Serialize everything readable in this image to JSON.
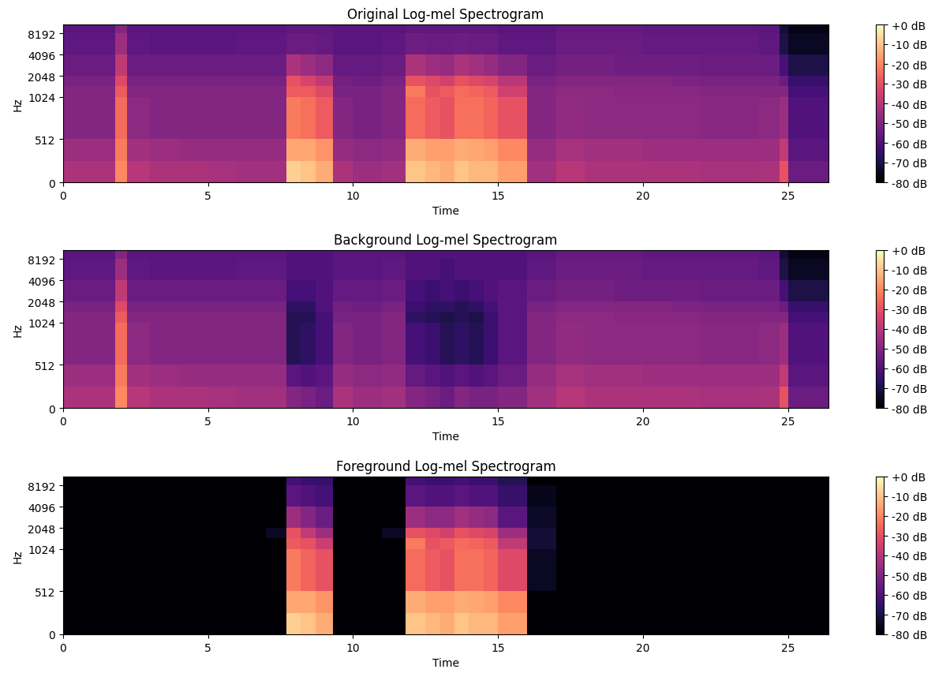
{
  "chart_data": [
    {
      "type": "heatmap",
      "title": "Original Log-mel Spectrogram",
      "x_label": "Time",
      "y_label": "Hz",
      "xlim": [
        0,
        26.4
      ],
      "ylim": [
        0,
        11025
      ],
      "xticks": [
        0,
        5,
        10,
        15,
        20,
        25
      ],
      "yticks": [
        0,
        512,
        1024,
        2048,
        4096,
        8192
      ],
      "log": "y",
      "x_edges": [
        0,
        1,
        1.8,
        2.2,
        3,
        4,
        5,
        6,
        7,
        7.7,
        8.2,
        8.7,
        9.3,
        10,
        11,
        11.8,
        12.5,
        13,
        13.5,
        14,
        14.5,
        15,
        16,
        17,
        18,
        19,
        20,
        21,
        22,
        23,
        24,
        24.7,
        25,
        26.4
      ],
      "y_edges": [
        0,
        256,
        512,
        1024,
        1448,
        2048,
        4096,
        8192,
        11025
      ],
      "cells": [
        [
          -42,
          -42,
          -20,
          -40,
          -42,
          -42,
          -43,
          -44,
          -44,
          -8,
          -10,
          -14,
          -42,
          -45,
          -44,
          -10,
          -12,
          -14,
          -10,
          -12,
          -12,
          -16,
          -44,
          -40,
          -42,
          -42,
          -42,
          -42,
          -43,
          -43,
          -42,
          -30,
          -55
        ],
        [
          -45,
          -45,
          -22,
          -44,
          -45,
          -46,
          -46,
          -46,
          -46,
          -15,
          -15,
          -18,
          -46,
          -48,
          -47,
          -14,
          -16,
          -16,
          -14,
          -15,
          -16,
          -20,
          -46,
          -43,
          -44,
          -44,
          -45,
          -45,
          -45,
          -45,
          -45,
          -38,
          -58
        ],
        [
          -50,
          -50,
          -25,
          -48,
          -50,
          -50,
          -50,
          -50,
          -50,
          -22,
          -24,
          -28,
          -50,
          -52,
          -50,
          -25,
          -28,
          -30,
          -24,
          -24,
          -26,
          -30,
          -50,
          -47,
          -48,
          -48,
          -48,
          -48,
          -49,
          -49,
          -48,
          -45,
          -60
        ],
        [
          -50,
          -50,
          -28,
          -50,
          -50,
          -50,
          -50,
          -50,
          -50,
          -28,
          -28,
          -32,
          -52,
          -52,
          -50,
          -22,
          -30,
          -28,
          -25,
          -26,
          -28,
          -35,
          -50,
          -48,
          -48,
          -49,
          -49,
          -49,
          -50,
          -50,
          -50,
          -50,
          -62
        ],
        [
          -52,
          -52,
          -32,
          -52,
          -52,
          -52,
          -52,
          -52,
          -52,
          -30,
          -34,
          -38,
          -53,
          -54,
          -52,
          -30,
          -32,
          -35,
          -30,
          -32,
          -34,
          -40,
          -52,
          -50,
          -50,
          -50,
          -50,
          -51,
          -52,
          -52,
          -52,
          -55,
          -65
        ],
        [
          -55,
          -55,
          -38,
          -55,
          -55,
          -55,
          -55,
          -55,
          -55,
          -42,
          -45,
          -48,
          -56,
          -56,
          -55,
          -42,
          -45,
          -46,
          -42,
          -44,
          -46,
          -50,
          -55,
          -53,
          -53,
          -54,
          -54,
          -54,
          -55,
          -55,
          -55,
          -62,
          -70
        ],
        [
          -57,
          -57,
          -45,
          -57,
          -58,
          -58,
          -58,
          -57,
          -57,
          -55,
          -55,
          -56,
          -58,
          -58,
          -57,
          -54,
          -55,
          -55,
          -54,
          -55,
          -55,
          -57,
          -57,
          -55,
          -55,
          -55,
          -56,
          -56,
          -56,
          -56,
          -57,
          -70,
          -75
        ],
        [
          -58,
          -58,
          -50,
          -58,
          -58,
          -58,
          -58,
          -58,
          -58,
          -57,
          -57,
          -57,
          -58,
          -58,
          -58,
          -57,
          -57,
          -57,
          -57,
          -57,
          -57,
          -58,
          -58,
          -56,
          -56,
          -56,
          -57,
          -57,
          -57,
          -57,
          -58,
          -72,
          -77
        ]
      ],
      "colorbar_range": [
        -80,
        0
      ],
      "colorbar_ticks": [
        {
          "value": 0,
          "label": "+0 dB"
        },
        {
          "value": -10,
          "label": "-10 dB"
        },
        {
          "value": -20,
          "label": "-20 dB"
        },
        {
          "value": -30,
          "label": "-30 dB"
        },
        {
          "value": -40,
          "label": "-40 dB"
        },
        {
          "value": -50,
          "label": "-50 dB"
        },
        {
          "value": -60,
          "label": "-60 dB"
        },
        {
          "value": -70,
          "label": "-70 dB"
        },
        {
          "value": -80,
          "label": "-80 dB"
        }
      ]
    },
    {
      "type": "heatmap",
      "title": "Background Log-mel Spectrogram",
      "x_label": "Time",
      "y_label": "Hz",
      "xlim": [
        0,
        26.4
      ],
      "ylim": [
        0,
        11025
      ],
      "xticks": [
        0,
        5,
        10,
        15,
        20,
        25
      ],
      "yticks": [
        0,
        512,
        1024,
        2048,
        4096,
        8192
      ],
      "log": "y",
      "x_edges": [
        0,
        1,
        1.8,
        2.2,
        3,
        4,
        5,
        6,
        7,
        7.7,
        8.2,
        8.7,
        9.3,
        10,
        11,
        11.8,
        12.5,
        13,
        13.5,
        14,
        14.5,
        15,
        16,
        17,
        18,
        19,
        20,
        21,
        22,
        23,
        24,
        24.7,
        25,
        26.4
      ],
      "y_edges": [
        0,
        256,
        512,
        1024,
        1448,
        2048,
        4096,
        8192,
        11025
      ],
      "cells": [
        [
          -42,
          -42,
          -20,
          -40,
          -42,
          -42,
          -43,
          -44,
          -44,
          -50,
          -52,
          -55,
          -42,
          -45,
          -44,
          -50,
          -52,
          -55,
          -50,
          -52,
          -52,
          -50,
          -44,
          -40,
          -42,
          -42,
          -42,
          -42,
          -43,
          -43,
          -42,
          -30,
          -55
        ],
        [
          -45,
          -45,
          -22,
          -44,
          -45,
          -46,
          -46,
          -46,
          -46,
          -58,
          -60,
          -58,
          -46,
          -48,
          -47,
          -56,
          -58,
          -60,
          -58,
          -60,
          -58,
          -55,
          -46,
          -43,
          -44,
          -44,
          -45,
          -45,
          -45,
          -45,
          -45,
          -38,
          -58
        ],
        [
          -50,
          -50,
          -25,
          -48,
          -50,
          -50,
          -50,
          -50,
          -50,
          -68,
          -66,
          -62,
          -50,
          -52,
          -50,
          -62,
          -64,
          -68,
          -66,
          -68,
          -64,
          -58,
          -50,
          -47,
          -48,
          -48,
          -48,
          -48,
          -49,
          -49,
          -48,
          -45,
          -60
        ],
        [
          -50,
          -50,
          -28,
          -50,
          -50,
          -50,
          -50,
          -50,
          -50,
          -68,
          -68,
          -62,
          -52,
          -52,
          -50,
          -66,
          -68,
          -70,
          -68,
          -70,
          -64,
          -58,
          -50,
          -48,
          -48,
          -49,
          -49,
          -49,
          -50,
          -50,
          -50,
          -50,
          -62
        ],
        [
          -52,
          -52,
          -32,
          -52,
          -52,
          -52,
          -52,
          -52,
          -52,
          -66,
          -66,
          -60,
          -53,
          -54,
          -52,
          -64,
          -66,
          -66,
          -68,
          -66,
          -62,
          -58,
          -52,
          -50,
          -50,
          -50,
          -50,
          -51,
          -52,
          -52,
          -52,
          -55,
          -65
        ],
        [
          -55,
          -55,
          -38,
          -55,
          -55,
          -55,
          -55,
          -55,
          -55,
          -62,
          -62,
          -60,
          -56,
          -56,
          -55,
          -62,
          -64,
          -62,
          -64,
          -62,
          -60,
          -58,
          -55,
          -53,
          -53,
          -54,
          -54,
          -54,
          -55,
          -55,
          -55,
          -62,
          -70
        ],
        [
          -57,
          -57,
          -45,
          -57,
          -58,
          -58,
          -58,
          -57,
          -57,
          -60,
          -60,
          -60,
          -58,
          -58,
          -57,
          -60,
          -60,
          -62,
          -60,
          -60,
          -60,
          -60,
          -57,
          -55,
          -55,
          -55,
          -56,
          -56,
          -56,
          -56,
          -57,
          -70,
          -75
        ],
        [
          -58,
          -58,
          -50,
          -58,
          -58,
          -58,
          -58,
          -58,
          -58,
          -60,
          -60,
          -60,
          -58,
          -58,
          -58,
          -60,
          -60,
          -60,
          -60,
          -60,
          -60,
          -60,
          -58,
          -56,
          -56,
          -56,
          -57,
          -57,
          -57,
          -57,
          -58,
          -72,
          -77
        ]
      ],
      "colorbar_range": [
        -80,
        0
      ],
      "colorbar_ticks": [
        {
          "value": 0,
          "label": "+0 dB"
        },
        {
          "value": -10,
          "label": "-10 dB"
        },
        {
          "value": -20,
          "label": "-20 dB"
        },
        {
          "value": -30,
          "label": "-30 dB"
        },
        {
          "value": -40,
          "label": "-40 dB"
        },
        {
          "value": -50,
          "label": "-50 dB"
        },
        {
          "value": -60,
          "label": "-60 dB"
        },
        {
          "value": -70,
          "label": "-70 dB"
        },
        {
          "value": -80,
          "label": "-80 dB"
        }
      ]
    },
    {
      "type": "heatmap",
      "title": "Foreground Log-mel Spectrogram",
      "x_label": "Time",
      "y_label": "Hz",
      "xlim": [
        0,
        26.4
      ],
      "ylim": [
        0,
        11025
      ],
      "xticks": [
        0,
        5,
        10,
        15,
        20,
        25
      ],
      "yticks": [
        0,
        512,
        1024,
        2048,
        4096,
        8192
      ],
      "log": "y",
      "x_edges": [
        0,
        1,
        1.8,
        2.2,
        3,
        4,
        5,
        6,
        7,
        7.7,
        8.2,
        8.7,
        9.3,
        10,
        11,
        11.8,
        12.5,
        13,
        13.5,
        14,
        14.5,
        15,
        16,
        17,
        18,
        19,
        20,
        21,
        22,
        23,
        24,
        24.7,
        25,
        26.4
      ],
      "y_edges": [
        0,
        256,
        512,
        1024,
        1448,
        2048,
        4096,
        8192,
        11025
      ],
      "cells": [
        [
          -80,
          -80,
          -80,
          -80,
          -80,
          -80,
          -80,
          -80,
          -80,
          -8,
          -10,
          -14,
          -80,
          -80,
          -80,
          -10,
          -12,
          -14,
          -10,
          -12,
          -12,
          -16,
          -80,
          -80,
          -80,
          -80,
          -80,
          -80,
          -80,
          -80,
          -80,
          -80,
          -80
        ],
        [
          -80,
          -80,
          -80,
          -80,
          -80,
          -80,
          -80,
          -80,
          -80,
          -15,
          -15,
          -18,
          -80,
          -80,
          -80,
          -14,
          -16,
          -16,
          -14,
          -15,
          -16,
          -20,
          -80,
          -80,
          -80,
          -80,
          -80,
          -80,
          -80,
          -80,
          -80,
          -80,
          -80
        ],
        [
          -80,
          -80,
          -80,
          -80,
          -80,
          -80,
          -80,
          -80,
          -80,
          -22,
          -26,
          -30,
          -80,
          -80,
          -80,
          -25,
          -28,
          -30,
          -24,
          -24,
          -26,
          -32,
          -75,
          -80,
          -80,
          -80,
          -80,
          -80,
          -80,
          -80,
          -80,
          -80,
          -80
        ],
        [
          -80,
          -80,
          -80,
          -80,
          -80,
          -80,
          -80,
          -80,
          -80,
          -28,
          -30,
          -36,
          -80,
          -80,
          -80,
          -22,
          -30,
          -28,
          -25,
          -26,
          -28,
          -38,
          -72,
          -80,
          -80,
          -80,
          -80,
          -80,
          -80,
          -80,
          -80,
          -80,
          -80
        ],
        [
          -80,
          -80,
          -80,
          -80,
          -80,
          -80,
          -80,
          -80,
          -75,
          -30,
          -38,
          -45,
          -80,
          -80,
          -75,
          -30,
          -32,
          -35,
          -30,
          -32,
          -34,
          -45,
          -72,
          -80,
          -80,
          -80,
          -80,
          -80,
          -80,
          -80,
          -80,
          -80,
          -80
        ],
        [
          -80,
          -80,
          -80,
          -80,
          -80,
          -80,
          -80,
          -80,
          -80,
          -45,
          -50,
          -55,
          -80,
          -80,
          -80,
          -45,
          -48,
          -48,
          -44,
          -46,
          -48,
          -58,
          -74,
          -80,
          -80,
          -80,
          -80,
          -80,
          -80,
          -80,
          -80,
          -80,
          -80
        ],
        [
          -80,
          -80,
          -80,
          -80,
          -80,
          -80,
          -80,
          -80,
          -80,
          -58,
          -60,
          -62,
          -80,
          -80,
          -80,
          -58,
          -60,
          -60,
          -58,
          -60,
          -60,
          -65,
          -76,
          -80,
          -80,
          -80,
          -80,
          -80,
          -80,
          -80,
          -80,
          -80,
          -80
        ],
        [
          -80,
          -80,
          -80,
          -80,
          -80,
          -80,
          -80,
          -80,
          -80,
          -62,
          -64,
          -65,
          -80,
          -80,
          -80,
          -62,
          -64,
          -64,
          -62,
          -64,
          -64,
          -68,
          -80,
          -80,
          -80,
          -80,
          -80,
          -80,
          -80,
          -80,
          -80,
          -80,
          -80
        ]
      ],
      "colorbar_range": [
        -80,
        0
      ],
      "colorbar_ticks": [
        {
          "value": 0,
          "label": "+0 dB"
        },
        {
          "value": -10,
          "label": "-10 dB"
        },
        {
          "value": -20,
          "label": "-20 dB"
        },
        {
          "value": -30,
          "label": "-30 dB"
        },
        {
          "value": -40,
          "label": "-40 dB"
        },
        {
          "value": -50,
          "label": "-50 dB"
        },
        {
          "value": -60,
          "label": "-60 dB"
        },
        {
          "value": -70,
          "label": "-70 dB"
        },
        {
          "value": -80,
          "label": "-80 dB"
        }
      ]
    }
  ]
}
